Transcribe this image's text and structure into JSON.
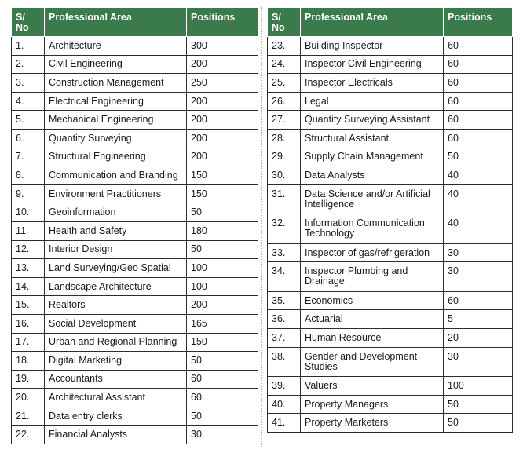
{
  "headers": {
    "sno": "S/\nNo",
    "area": "Professional Area",
    "positions": "Positions"
  },
  "left_rows": [
    {
      "sno": "1.",
      "area": "Architecture",
      "positions": "300"
    },
    {
      "sno": "2.",
      "area": "Civil Engineering",
      "positions": "200"
    },
    {
      "sno": "3.",
      "area": "Construction Management",
      "positions": "250"
    },
    {
      "sno": "4.",
      "area": "Electrical Engineering",
      "positions": "200"
    },
    {
      "sno": "5.",
      "area": "Mechanical Engineering",
      "positions": "200"
    },
    {
      "sno": "6.",
      "area": "Quantity Surveying",
      "positions": "200"
    },
    {
      "sno": "7.",
      "area": "Structural Engineering",
      "positions": "200"
    },
    {
      "sno": "8.",
      "area": "Communication and Branding",
      "positions": "150"
    },
    {
      "sno": "9.",
      "area": "Environment Practitioners",
      "positions": "150"
    },
    {
      "sno": "10.",
      "area": "Geoinformation",
      "positions": "50"
    },
    {
      "sno": "11.",
      "area": "Health and Safety",
      "positions": "180"
    },
    {
      "sno": "12.",
      "area": "Interior Design",
      "positions": "50"
    },
    {
      "sno": "13.",
      "area": "Land Surveying/Geo Spatial",
      "positions": "100"
    },
    {
      "sno": "14.",
      "area": "Landscape Architecture",
      "positions": "100"
    },
    {
      "sno": "15.",
      "area": "Realtors",
      "positions": "200"
    },
    {
      "sno": "16.",
      "area": "Social Development",
      "positions": "165"
    },
    {
      "sno": "17.",
      "area": "Urban and Regional Planning",
      "positions": "150"
    },
    {
      "sno": "18.",
      "area": "Digital Marketing",
      "positions": "50"
    },
    {
      "sno": "19.",
      "area": "Accountants",
      "positions": "60"
    },
    {
      "sno": "20.",
      "area": "Architectural Assistant",
      "positions": "60"
    },
    {
      "sno": "21.",
      "area": "Data entry clerks",
      "positions": "50"
    },
    {
      "sno": "22.",
      "area": "Financial Analysts",
      "positions": "30"
    }
  ],
  "right_rows": [
    {
      "sno": "23.",
      "area": "Building Inspector",
      "positions": "60"
    },
    {
      "sno": "24.",
      "area": "Inspector Civil Engineering",
      "positions": "60"
    },
    {
      "sno": "25.",
      "area": "Inspector Electricals",
      "positions": "60"
    },
    {
      "sno": "26.",
      "area": "Legal",
      "positions": "60"
    },
    {
      "sno": "27.",
      "area": "Quantity Surveying Assistant",
      "positions": "60"
    },
    {
      "sno": "28.",
      "area": "Structural Assistant",
      "positions": "60"
    },
    {
      "sno": "29.",
      "area": "Supply Chain Management",
      "positions": "50"
    },
    {
      "sno": "30.",
      "area": "Data Analysts",
      "positions": "40"
    },
    {
      "sno": "31.",
      "area": "Data Science and/or Artificial\nIntelligence",
      "positions": "40"
    },
    {
      "sno": "32.",
      "area": "Information Communication\nTechnology",
      "positions": "40"
    },
    {
      "sno": "33.",
      "area": "Inspector of gas/refrigeration",
      "positions": "30"
    },
    {
      "sno": "34.",
      "area": "Inspector Plumbing and\nDrainage",
      "positions": "30"
    },
    {
      "sno": "35.",
      "area": "Economics",
      "positions": "60"
    },
    {
      "sno": "36.",
      "area": "Actuarial",
      "positions": "5"
    },
    {
      "sno": "37.",
      "area": "Human Resource",
      "positions": "20"
    },
    {
      "sno": "38.",
      "area": "Gender and Development\nStudies",
      "positions": "30"
    },
    {
      "sno": "39.",
      "area": "Valuers",
      "positions": "100"
    },
    {
      "sno": "40.",
      "area": "Property Managers",
      "positions": "50"
    },
    {
      "sno": "41.",
      "area": "Property Marketers",
      "positions": "50"
    }
  ]
}
